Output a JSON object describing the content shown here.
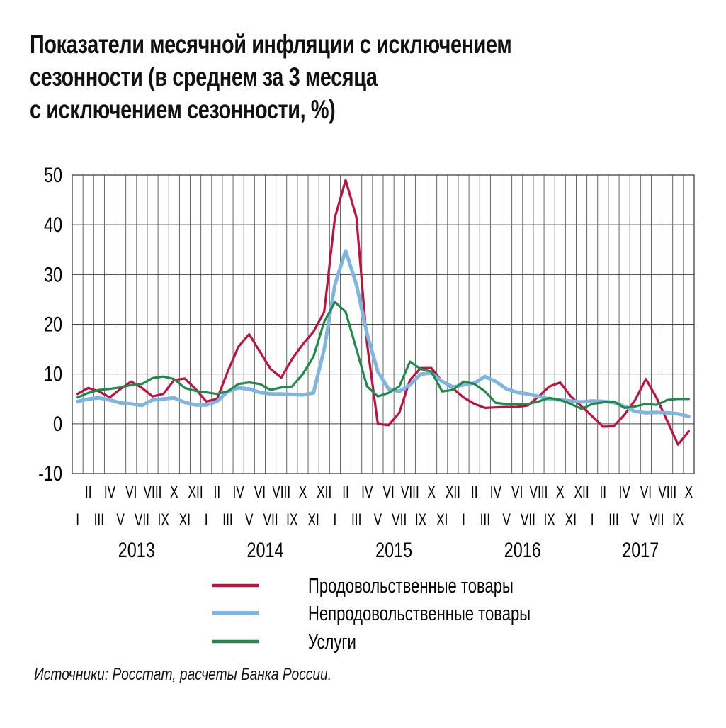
{
  "title_lines": [
    "Показатели месячной инфляции с исключением",
    "сезонности (в среднем за 3 месяца",
    "с исключением сезонности, %)"
  ],
  "source": "Источники: Росстат, расчеты Банка России.",
  "chart_data": {
    "type": "line",
    "title": "Показатели месячной инфляции с исключением сезонности (в среднем за 3 месяца с исключением сезонности, %)",
    "xlabel": "",
    "ylabel": "",
    "ylim": [
      -10,
      50
    ],
    "yticks": [
      -10,
      0,
      10,
      20,
      30,
      40,
      50
    ],
    "grid": true,
    "legend_position": "bottom",
    "x_start": "2013-01",
    "years": [
      {
        "label": "2013",
        "start_index": 0
      },
      {
        "label": "2014",
        "start_index": 12
      },
      {
        "label": "2015",
        "start_index": 24
      },
      {
        "label": "2016",
        "start_index": 36
      },
      {
        "label": "2017",
        "start_index": 48
      }
    ],
    "month_labels_even": [
      "II",
      "IV",
      "VI",
      "VIII",
      "X",
      "XII"
    ],
    "month_labels_odd": [
      "I",
      "III",
      "V",
      "VII",
      "IX",
      "XI"
    ],
    "series": [
      {
        "name": "Продовольственные товары",
        "color": "#c0103c",
        "values": [
          6,
          7.2,
          6.5,
          5.3,
          7,
          8.5,
          7.2,
          5.5,
          6,
          8.8,
          9.1,
          7,
          4.5,
          5,
          10.5,
          15.5,
          18,
          14.5,
          11,
          9.3,
          13,
          16,
          18.5,
          22.5,
          41.5,
          49,
          41.5,
          16,
          0,
          -0.3,
          2.2,
          8.8,
          11.2,
          11.2,
          8.5,
          7.1,
          5.3,
          4,
          3.2,
          3.3,
          3.4,
          3.4,
          3.7,
          5.5,
          7.5,
          8.3,
          5.5,
          3.5,
          1.5,
          -0.6,
          -0.5,
          1.8,
          4.8,
          9,
          5.2,
          0.5,
          -4.2,
          -1.5
        ]
      },
      {
        "name": "Непродовольственные товары",
        "color": "#7fb6e0",
        "values": [
          4.5,
          5,
          5.2,
          4.8,
          4.2,
          4,
          3.7,
          4.8,
          5,
          5.2,
          4.3,
          3.8,
          3.8,
          4.5,
          6.5,
          7.2,
          7,
          6.3,
          6,
          6,
          5.9,
          5.8,
          6.2,
          15,
          28,
          34.8,
          28,
          18,
          10.5,
          7,
          6.5,
          7.8,
          10,
          10.2,
          8.5,
          7.4,
          7.8,
          8.2,
          9.5,
          8.5,
          7,
          6.3,
          6,
          5.5,
          5,
          4.8,
          4.6,
          4.4,
          4.6,
          4.5,
          4.3,
          3.5,
          2.5,
          2.2,
          2.3,
          2.2,
          2,
          1.5
        ]
      },
      {
        "name": "Услуги",
        "color": "#1f8a4c",
        "values": [
          5.3,
          6.2,
          6.8,
          7,
          7.3,
          7.8,
          8,
          9.2,
          9.5,
          9,
          7.2,
          6.6,
          6.3,
          6,
          6.5,
          8,
          8.3,
          8,
          6.8,
          7.3,
          7.5,
          10,
          13.5,
          20.5,
          24.5,
          22.5,
          15,
          7.5,
          5.5,
          6.2,
          7.5,
          12.5,
          11,
          10.5,
          6.5,
          6.8,
          8.5,
          8,
          6.5,
          4.2,
          4,
          4,
          4,
          4.5,
          5.2,
          4.8,
          4,
          3,
          4,
          4.3,
          4.5,
          3.2,
          3.5,
          4,
          3.8,
          4.8,
          5,
          5
        ]
      }
    ]
  }
}
